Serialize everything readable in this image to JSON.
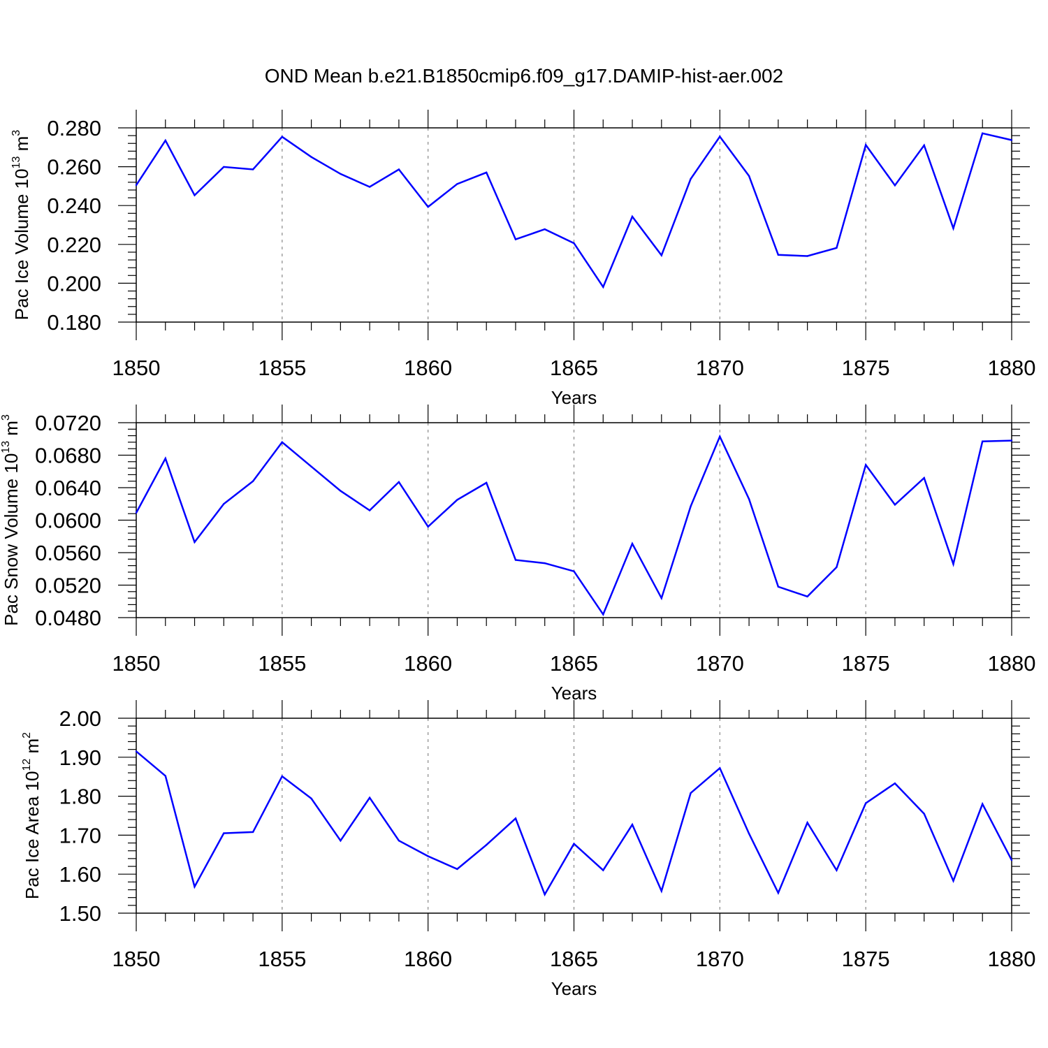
{
  "title": "OND Mean b.e21.B1850cmip6.f09_g17.DAMIP-hist-aer.002",
  "colors": {
    "line": "#0000ff",
    "axis": "#000000",
    "grid": "#888888"
  },
  "chart_data": [
    {
      "type": "line",
      "xlabel": "Years",
      "ylabel": {
        "prefix": "Pac Ice Volume 10",
        "exp": "13",
        "unit": " m",
        "unit_exp": "3"
      },
      "xlim": [
        1850,
        1880
      ],
      "ylim": [
        0.18,
        0.28
      ],
      "xticks": [
        "1850",
        "1855",
        "1860",
        "1865",
        "1870",
        "1875",
        "1880"
      ],
      "yticks": [
        "0.180",
        "0.200",
        "0.220",
        "0.240",
        "0.260",
        "0.280"
      ],
      "grid": "vertical-dashed",
      "x": [
        1850,
        1851,
        1852,
        1853,
        1854,
        1855,
        1856,
        1857,
        1858,
        1859,
        1860,
        1861,
        1862,
        1863,
        1864,
        1865,
        1866,
        1867,
        1868,
        1869,
        1870,
        1871,
        1872,
        1873,
        1874,
        1875,
        1876,
        1877,
        1878,
        1879,
        1880
      ],
      "values": [
        0.2505,
        0.2735,
        0.2453,
        0.2599,
        0.2586,
        0.2754,
        0.265,
        0.2563,
        0.2496,
        0.2586,
        0.2393,
        0.2511,
        0.257,
        0.2226,
        0.2278,
        0.2206,
        0.1981,
        0.2343,
        0.2144,
        0.2537,
        0.2755,
        0.2552,
        0.2146,
        0.214,
        0.2182,
        0.2712,
        0.2504,
        0.271,
        0.2283,
        0.2772,
        0.2737
      ]
    },
    {
      "type": "line",
      "xlabel": "Years",
      "ylabel": {
        "prefix": "Pac Snow Volume 10",
        "exp": "13",
        "unit": " m",
        "unit_exp": "3"
      },
      "xlim": [
        1850,
        1880
      ],
      "ylim": [
        0.048,
        0.072
      ],
      "xticks": [
        "1850",
        "1855",
        "1860",
        "1865",
        "1870",
        "1875",
        "1880"
      ],
      "yticks": [
        "0.0480",
        "0.0520",
        "0.0560",
        "0.0600",
        "0.0640",
        "0.0680",
        "0.0720"
      ],
      "grid": "vertical-dashed",
      "x": [
        1850,
        1851,
        1852,
        1853,
        1854,
        1855,
        1856,
        1857,
        1858,
        1859,
        1860,
        1861,
        1862,
        1863,
        1864,
        1865,
        1866,
        1867,
        1868,
        1869,
        1870,
        1871,
        1872,
        1873,
        1874,
        1875,
        1876,
        1877,
        1878,
        1879,
        1880
      ],
      "values": [
        0.0609,
        0.0676,
        0.0573,
        0.062,
        0.0648,
        0.0696,
        0.0666,
        0.0636,
        0.0612,
        0.0647,
        0.0592,
        0.0625,
        0.0646,
        0.0551,
        0.0547,
        0.0537,
        0.0484,
        0.0571,
        0.0504,
        0.0617,
        0.0703,
        0.0626,
        0.0518,
        0.0506,
        0.0542,
        0.0668,
        0.0619,
        0.0652,
        0.0546,
        0.0697,
        0.0698
      ]
    },
    {
      "type": "line",
      "xlabel": "Years",
      "ylabel": {
        "prefix": "Pac Ice Area 10",
        "exp": "12",
        "unit": " m",
        "unit_exp": "2"
      },
      "xlim": [
        1850,
        1880
      ],
      "ylim": [
        1.5,
        2.0
      ],
      "xticks": [
        "1850",
        "1855",
        "1860",
        "1865",
        "1870",
        "1875",
        "1880"
      ],
      "yticks": [
        "1.50",
        "1.60",
        "1.70",
        "1.80",
        "1.90",
        "2.00"
      ],
      "grid": "vertical-dashed",
      "x": [
        1850,
        1851,
        1852,
        1853,
        1854,
        1855,
        1856,
        1857,
        1858,
        1859,
        1860,
        1861,
        1862,
        1863,
        1864,
        1865,
        1866,
        1867,
        1868,
        1869,
        1870,
        1871,
        1872,
        1873,
        1874,
        1875,
        1876,
        1877,
        1878,
        1879,
        1880
      ],
      "values": [
        1.915,
        1.852,
        1.568,
        1.705,
        1.708,
        1.851,
        1.794,
        1.686,
        1.796,
        1.686,
        1.646,
        1.613,
        1.675,
        1.743,
        1.548,
        1.678,
        1.61,
        1.727,
        1.557,
        1.808,
        1.872,
        1.704,
        1.552,
        1.732,
        1.61,
        1.782,
        1.833,
        1.755,
        1.583,
        1.78,
        1.636
      ]
    }
  ]
}
